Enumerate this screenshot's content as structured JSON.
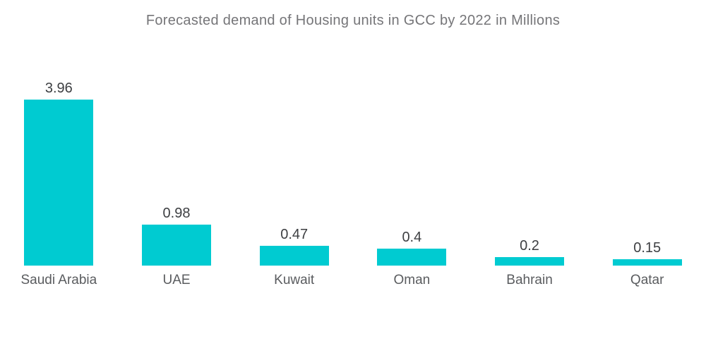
{
  "chart_data": {
    "type": "bar",
    "title": "Forecasted demand of Housing units in GCC by 2022 in Millions",
    "categories": [
      "Saudi Arabia",
      "UAE",
      "Kuwait",
      "Oman",
      "Bahrain",
      "Qatar"
    ],
    "values": [
      3.96,
      0.98,
      0.47,
      0.4,
      0.2,
      0.15
    ],
    "value_labels": [
      "3.96",
      "0.98",
      "0.47",
      "0.4",
      "0.2",
      "0.15"
    ],
    "xlabel": "",
    "ylabel": "",
    "ylim": [
      0,
      4.2
    ],
    "grid": false,
    "legend": false,
    "bar_color": "#00CBD1",
    "title_color": "#757578",
    "value_label_color": "#3d3f42",
    "category_label_color": "#5a5c5f",
    "background_color": "#ffffff"
  }
}
